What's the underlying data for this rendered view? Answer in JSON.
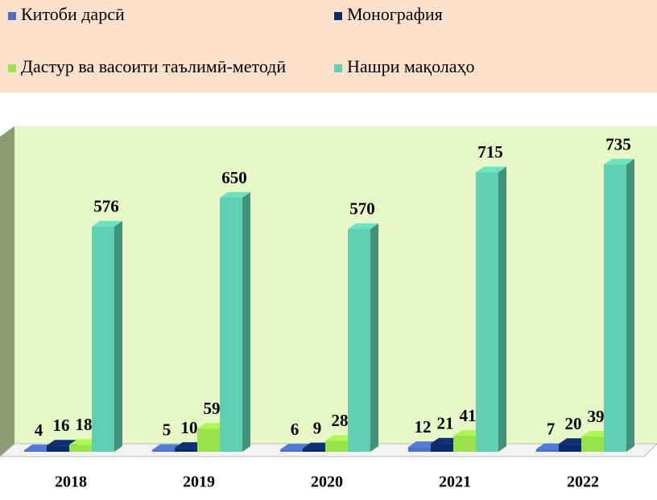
{
  "chart_data": {
    "type": "bar3d",
    "categories": [
      "2018",
      "2019",
      "2020",
      "2021",
      "2022"
    ],
    "series": [
      {
        "name": "Китоби дарсӣ",
        "color": "#4a6fc9",
        "values": [
          4,
          5,
          6,
          12,
          7
        ]
      },
      {
        "name": "Монография",
        "color": "#0d2a6b",
        "values": [
          16,
          10,
          9,
          21,
          20
        ]
      },
      {
        "name": "Дастур ва васоити таълимӣ-методӣ",
        "color": "#9be34a",
        "values": [
          18,
          59,
          28,
          41,
          39
        ]
      },
      {
        "name": "Нашри мақолаҳо",
        "color": "#5ecfb0",
        "values": [
          576,
          650,
          570,
          715,
          735
        ]
      }
    ],
    "ylim": [
      0,
      800
    ]
  }
}
